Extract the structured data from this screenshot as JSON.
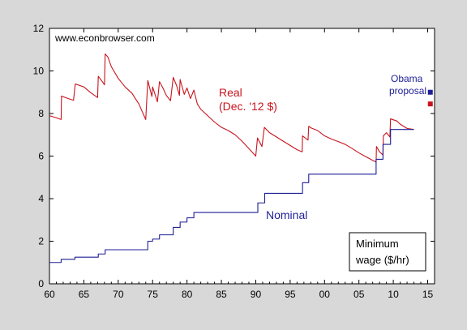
{
  "chart_data": {
    "type": "line",
    "title": "",
    "watermark": "www.econbrowser.com",
    "xlabel": "",
    "ylabel": "",
    "xlim": [
      1960,
      2016
    ],
    "ylim": [
      0,
      12
    ],
    "x_ticks": [
      1960,
      1965,
      1970,
      1975,
      1980,
      1985,
      1990,
      1995,
      2000,
      2005,
      2010,
      2015
    ],
    "x_tick_labels": [
      "60",
      "65",
      "70",
      "75",
      "80",
      "85",
      "90",
      "95",
      "00",
      "05",
      "10",
      "15"
    ],
    "y_ticks": [
      0,
      2,
      4,
      6,
      8,
      10,
      12
    ],
    "y_tick_labels": [
      "0",
      "2",
      "4",
      "6",
      "8",
      "10",
      "12"
    ],
    "grid": false,
    "box_note_lines": [
      "Minimum",
      "wage ($/hr)"
    ],
    "series": [
      {
        "name": "Real (Dec. '12 $)",
        "label_lines": [
          "Real",
          "(Dec. '12 $)"
        ],
        "color": "#c8141e",
        "style": "line",
        "points": [
          [
            1960.0,
            7.9
          ],
          [
            1961.0,
            7.8
          ],
          [
            1961.7,
            7.72
          ],
          [
            1961.75,
            8.82
          ],
          [
            1962.5,
            8.73
          ],
          [
            1963.5,
            8.62
          ],
          [
            1963.75,
            9.39
          ],
          [
            1965.0,
            9.25
          ],
          [
            1966.0,
            8.98
          ],
          [
            1967.0,
            8.75
          ],
          [
            1967.1,
            9.75
          ],
          [
            1967.8,
            9.45
          ],
          [
            1968.0,
            9.35
          ],
          [
            1968.1,
            10.8
          ],
          [
            1968.5,
            10.65
          ],
          [
            1969.0,
            10.2
          ],
          [
            1970.0,
            9.65
          ],
          [
            1971.0,
            9.25
          ],
          [
            1972.0,
            8.95
          ],
          [
            1973.0,
            8.45
          ],
          [
            1974.0,
            7.72
          ],
          [
            1974.3,
            9.55
          ],
          [
            1974.9,
            8.8
          ],
          [
            1975.0,
            9.25
          ],
          [
            1975.7,
            8.55
          ],
          [
            1976.0,
            9.5
          ],
          [
            1976.5,
            9.2
          ],
          [
            1977.0,
            8.85
          ],
          [
            1977.6,
            8.6
          ],
          [
            1978.0,
            9.7
          ],
          [
            1978.5,
            9.3
          ],
          [
            1978.9,
            8.85
          ],
          [
            1979.0,
            9.6
          ],
          [
            1979.6,
            8.9
          ],
          [
            1980.0,
            9.2
          ],
          [
            1980.5,
            8.7
          ],
          [
            1981.0,
            9.1
          ],
          [
            1981.5,
            8.45
          ],
          [
            1982.0,
            8.2
          ],
          [
            1983.0,
            7.9
          ],
          [
            1984.0,
            7.6
          ],
          [
            1985.0,
            7.35
          ],
          [
            1986.0,
            7.2
          ],
          [
            1987.0,
            7.0
          ],
          [
            1988.0,
            6.7
          ],
          [
            1989.0,
            6.35
          ],
          [
            1990.0,
            6.0
          ],
          [
            1990.25,
            6.85
          ],
          [
            1990.9,
            6.45
          ],
          [
            1991.25,
            7.35
          ],
          [
            1992.0,
            7.1
          ],
          [
            1993.0,
            6.9
          ],
          [
            1994.0,
            6.7
          ],
          [
            1995.0,
            6.5
          ],
          [
            1996.0,
            6.3
          ],
          [
            1996.75,
            6.2
          ],
          [
            1996.8,
            6.95
          ],
          [
            1997.6,
            6.75
          ],
          [
            1997.7,
            7.4
          ],
          [
            1998.0,
            7.33
          ],
          [
            1999.0,
            7.2
          ],
          [
            2000.0,
            6.95
          ],
          [
            2001.0,
            6.8
          ],
          [
            2002.0,
            6.68
          ],
          [
            2003.0,
            6.55
          ],
          [
            2004.0,
            6.36
          ],
          [
            2005.0,
            6.15
          ],
          [
            2006.0,
            5.97
          ],
          [
            2007.0,
            5.8
          ],
          [
            2007.5,
            5.72
          ],
          [
            2007.55,
            6.45
          ],
          [
            2008.0,
            6.2
          ],
          [
            2008.5,
            6.05
          ],
          [
            2008.55,
            6.95
          ],
          [
            2009.0,
            7.1
          ],
          [
            2009.5,
            6.9
          ],
          [
            2009.6,
            7.75
          ],
          [
            2010.5,
            7.65
          ],
          [
            2011.0,
            7.5
          ],
          [
            2012.0,
            7.3
          ],
          [
            2013.0,
            7.25
          ]
        ]
      },
      {
        "name": "Nominal",
        "label_lines": [
          "Nominal"
        ],
        "color": "#1e1e96",
        "style": "step",
        "points": [
          [
            1960.0,
            1.0
          ],
          [
            1961.7,
            1.15
          ],
          [
            1963.7,
            1.25
          ],
          [
            1967.1,
            1.4
          ],
          [
            1968.1,
            1.6
          ],
          [
            1974.3,
            2.0
          ],
          [
            1975.0,
            2.1
          ],
          [
            1976.0,
            2.3
          ],
          [
            1978.0,
            2.65
          ],
          [
            1979.0,
            2.9
          ],
          [
            1980.0,
            3.1
          ],
          [
            1981.0,
            3.35
          ],
          [
            1990.3,
            3.8
          ],
          [
            1991.3,
            4.25
          ],
          [
            1996.8,
            4.75
          ],
          [
            1997.7,
            5.15
          ],
          [
            2007.5,
            5.85
          ],
          [
            2008.5,
            6.55
          ],
          [
            2009.6,
            7.25
          ],
          [
            2013.0,
            7.25
          ]
        ]
      },
      {
        "name": "Obama proposal",
        "label_lines": [
          "Obama",
          "proposal"
        ],
        "color": "#1e1e96",
        "style": "marker",
        "points": [
          [
            2015.5,
            9.0
          ]
        ]
      },
      {
        "name": "",
        "color": "#c8141e",
        "style": "marker",
        "points": [
          [
            2015.5,
            8.45
          ]
        ]
      }
    ]
  }
}
